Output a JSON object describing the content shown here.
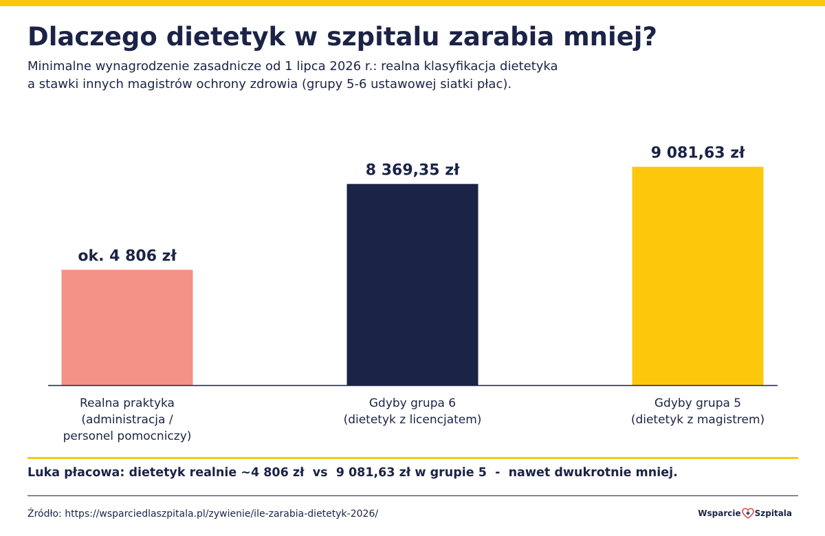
{
  "header": {
    "title": "Dlaczego dietetyk w szpitalu zarabia mniej?",
    "subtitle_lines": [
      "Minimalne wynagrodzenie zasadnicze od 1 lipca 2026 r.: realna klasyfikacja dietetyka",
      "a stawki innych magistrów ochrony zdrowia (grupy 5-6 ustawowej siatki płac)."
    ]
  },
  "chart_data": {
    "type": "bar",
    "categories": [
      [
        "Realna praktyka",
        "(administracja /",
        "personel pomocniczy)"
      ],
      [
        "Gdyby grupa 6",
        "(dietetyk z licencjatem)"
      ],
      [
        "Gdyby grupa 5",
        "(dietetyk z magistrem)"
      ]
    ],
    "values": [
      4806,
      8369.35,
      9081.63
    ],
    "value_labels": [
      "ok. 4 806 zł",
      "8 369,35 zł",
      "9 081,63 zł"
    ],
    "colors": [
      "#f49285",
      "#1b2346",
      "#fdc70c"
    ],
    "ylim": [
      0,
      10300
    ],
    "grid": false,
    "legend": "none"
  },
  "footer": {
    "gap_note": "Luka płacowa: dietetyk realnie ~4 806 zł  vs  9 081,63 zł w grupie 5  -  nawet dwukrotnie mniej.",
    "source": "Źródło: https://wsparciedlaszpitala.pl/zywienie/ile-zarabia-dietetyk-2026/",
    "logo_left": "Wsparcie",
    "logo_right": "Szpitala",
    "logo_icon": "heart-cross-icon",
    "logo_heart_color": "#e0463c"
  }
}
